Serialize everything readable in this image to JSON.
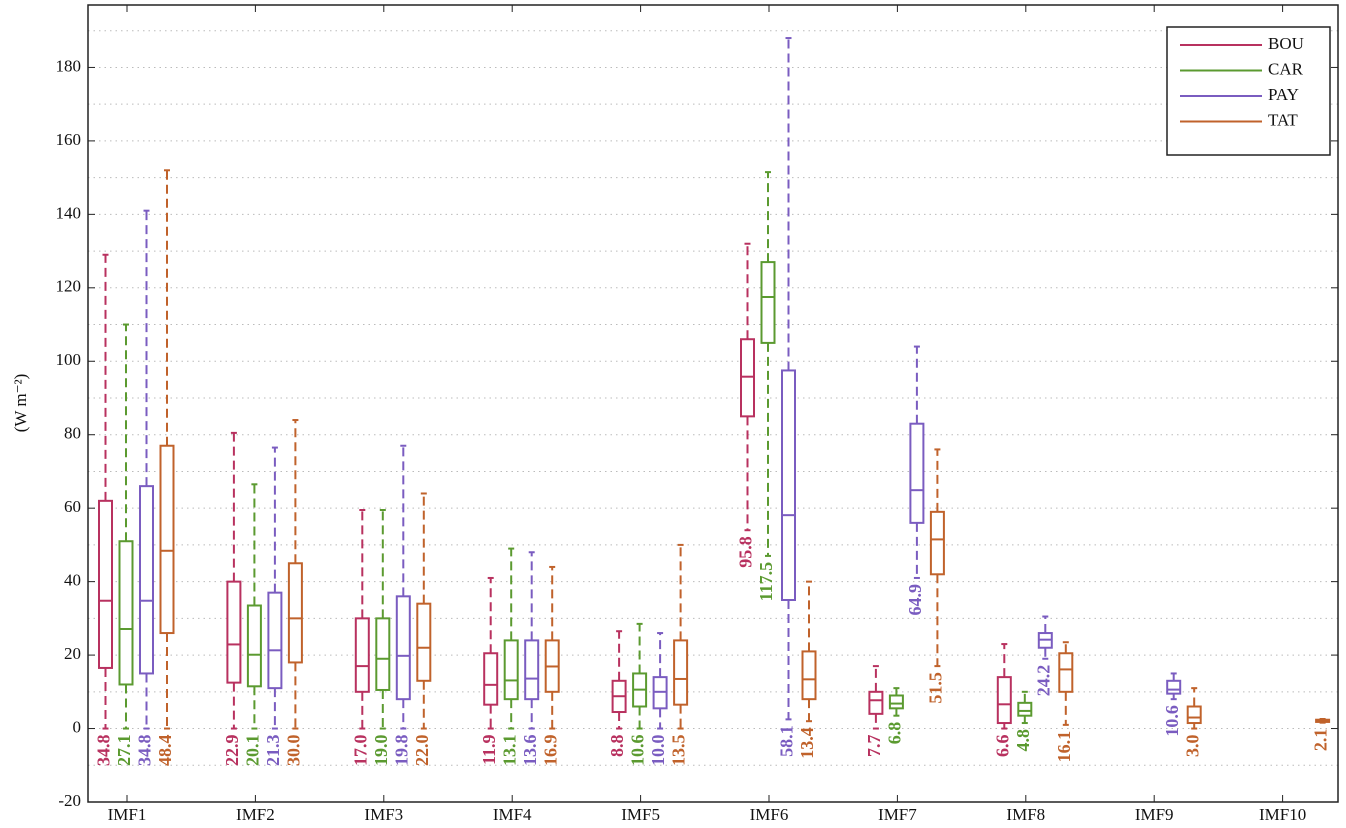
{
  "chart_data": {
    "type": "box",
    "y_label": "(W m⁻²)",
    "categories": [
      "IMF1",
      "IMF2",
      "IMF3",
      "IMF4",
      "IMF5",
      "IMF6",
      "IMF7",
      "IMF8",
      "IMF9",
      "IMF10"
    ],
    "ylim": [
      -20,
      197
    ],
    "yticks": [
      -20,
      0,
      20,
      40,
      60,
      80,
      100,
      120,
      140,
      160,
      180
    ],
    "yminorticks": [
      -10,
      10,
      30,
      50,
      70,
      90,
      110,
      130,
      150,
      170,
      190
    ],
    "grid": true,
    "legend": "upper right",
    "series": [
      {
        "name": "BOU",
        "color": "#b8315f",
        "low": [
          0,
          0,
          0,
          0,
          0,
          54,
          0,
          0,
          null,
          null
        ],
        "q1": [
          16.5,
          12.5,
          10,
          6.5,
          4.5,
          85,
          4,
          1.5,
          null,
          null
        ],
        "median": [
          34.8,
          22.9,
          17.0,
          11.9,
          8.8,
          95.8,
          7.7,
          6.6,
          null,
          null
        ],
        "q3": [
          62,
          40,
          30,
          20.5,
          13,
          106,
          10,
          14,
          null,
          null
        ],
        "high": [
          129,
          80.5,
          59.5,
          41,
          26.5,
          132,
          17,
          23,
          null,
          null
        ],
        "value_labels": [
          "34.8",
          "22.9",
          "17.0",
          "11.9",
          "8.8",
          "95.8",
          "7.7",
          "6.6",
          null,
          null
        ]
      },
      {
        "name": "CAR",
        "color": "#5b9a30",
        "low": [
          0,
          0,
          0,
          0,
          0,
          47,
          3.5,
          1.5,
          null,
          null
        ],
        "q1": [
          12,
          11.5,
          10.5,
          8,
          6,
          105,
          5.5,
          3.5,
          null,
          null
        ],
        "median": [
          27.1,
          20.1,
          19.0,
          13.1,
          10.6,
          117.5,
          6.8,
          4.8,
          null,
          null
        ],
        "q3": [
          51,
          33.5,
          30,
          24,
          15,
          127,
          9,
          7,
          null,
          null
        ],
        "high": [
          110,
          66.5,
          59.5,
          49,
          28.5,
          151.5,
          11,
          10,
          null,
          null
        ],
        "value_labels": [
          "27.1",
          "20.1",
          "19.0",
          "13.1",
          "10.6",
          "117.5",
          "6.8",
          "4.8",
          null,
          null
        ]
      },
      {
        "name": "PAY",
        "color": "#7a5cc0",
        "low": [
          0,
          0,
          0,
          0,
          0,
          2.5,
          41,
          19,
          8,
          null
        ],
        "q1": [
          15,
          11,
          8,
          8,
          5.5,
          35,
          56,
          22,
          9.5,
          null
        ],
        "median": [
          34.8,
          21.3,
          19.8,
          13.6,
          10.0,
          58.1,
          64.9,
          24.2,
          10.6,
          null
        ],
        "q3": [
          66,
          37,
          36,
          24,
          14,
          97.5,
          83,
          26,
          13,
          null
        ],
        "high": [
          141,
          76.5,
          77,
          48,
          26,
          188,
          104,
          30.5,
          15,
          null
        ],
        "value_labels": [
          "34.8",
          "21.3",
          "19.8",
          "13.6",
          "10.0",
          "58.1",
          "64.9",
          "24.2",
          "10.6",
          null
        ]
      },
      {
        "name": "TAT",
        "color": "#c0622b",
        "low": [
          0,
          0,
          0,
          0,
          0,
          2,
          17,
          1,
          0,
          1.6
        ],
        "q1": [
          26,
          18,
          13,
          10,
          6.5,
          8,
          42,
          10,
          1.5,
          1.8
        ],
        "median": [
          48.4,
          30.0,
          22.0,
          16.9,
          13.5,
          13.4,
          51.5,
          16.1,
          3.0,
          2.1
        ],
        "q3": [
          77,
          45,
          34,
          24,
          24,
          21,
          59,
          20.5,
          6,
          2.4
        ],
        "high": [
          152,
          84,
          64,
          44,
          50,
          40,
          76,
          23.5,
          11,
          2.6
        ],
        "value_labels": [
          "48.4",
          "30.0",
          "22.0",
          "16.9",
          "13.5",
          "13.4",
          "51.5",
          "16.1",
          "3.0",
          "2.1"
        ]
      }
    ]
  }
}
